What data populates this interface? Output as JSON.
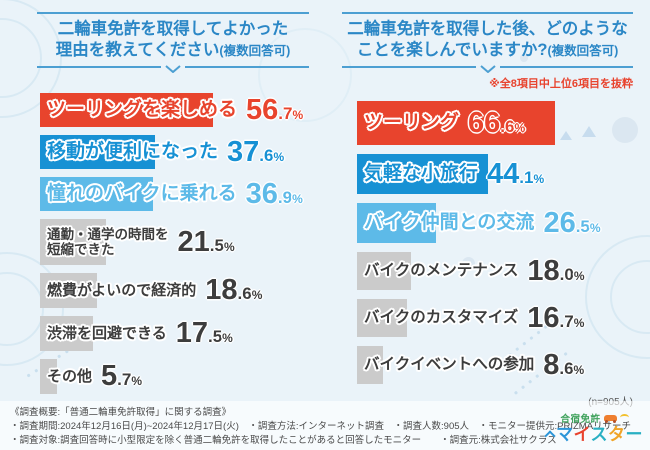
{
  "colors": {
    "red": "#e8442d",
    "blue": "#1791d4",
    "lightblue": "#5dbae8",
    "gray": "#cbcbcb",
    "dark": "#3d3d3d",
    "title_blue": "#2b87c6",
    "line_blue": "#4c9fd2",
    "note_red": "#e8432e",
    "bg": "#eaf3f9"
  },
  "left_chart": {
    "title1": "二輪車免許を取得してよかった",
    "title2": "理由を教えてください",
    "title_paren": "(複数回答可)",
    "items": [
      {
        "label": "ツーリングを楽しめる",
        "value": 56.7,
        "int": "56",
        "dec": ".7",
        "sym": "%",
        "color": "red"
      },
      {
        "label": "移動が便利になった",
        "value": 37.6,
        "int": "37",
        "dec": ".6",
        "sym": "%",
        "color": "blue"
      },
      {
        "label": "憧れのバイクに乗れる",
        "value": 36.9,
        "int": "36",
        "dec": ".9",
        "sym": "%",
        "color": "lightblue"
      },
      {
        "label": "通勤・通学の時間を",
        "label2": "短縮できた",
        "value": 21.5,
        "int": "21",
        "dec": ".5",
        "sym": "%",
        "color": "gray"
      },
      {
        "label": "燃費がよいので経済的",
        "value": 18.6,
        "int": "18",
        "dec": ".6",
        "sym": "%",
        "color": "gray"
      },
      {
        "label": "渋滞を回避できる",
        "value": 17.5,
        "int": "17",
        "dec": ".5",
        "sym": "%",
        "color": "gray"
      },
      {
        "label": "その他",
        "value": 5.7,
        "int": "5",
        "dec": ".7",
        "sym": "%",
        "color": "gray"
      }
    ]
  },
  "right_chart": {
    "title1": "二輪車免許を取得した後、どのような",
    "title2": "ことを楽しんでいますか?",
    "title_paren": "(複数回答可)",
    "note": "※全8項目中上位6項目を抜粋",
    "sample": "(n=905人)",
    "items": [
      {
        "label": "ツーリング",
        "value": 66.6,
        "int": "66",
        "dec": ".6",
        "sym": "%",
        "color": "red"
      },
      {
        "label": "気軽な小旅行",
        "value": 44.1,
        "int": "44",
        "dec": ".1",
        "sym": "%",
        "color": "blue"
      },
      {
        "label": "バイク仲間との交流",
        "value": 26.5,
        "int": "26",
        "dec": ".5",
        "sym": "%",
        "color": "lightblue"
      },
      {
        "label": "バイクのメンテナンス",
        "value": 18.0,
        "int": "18",
        "dec": ".0",
        "sym": "%",
        "color": "gray"
      },
      {
        "label": "バイクのカスタマイズ",
        "value": 16.7,
        "int": "16",
        "dec": ".7",
        "sym": "%",
        "color": "gray"
      },
      {
        "label": "バイクイベントへの参加",
        "value": 8.6,
        "int": "8",
        "dec": ".6",
        "sym": "%",
        "color": "gray"
      }
    ]
  },
  "footer": {
    "line1": "《調査概要:「普通二輪車免許取得」に関する調査》",
    "line2": "・調査期間:2024年12月16日(月)~2024年12月17日(火)　・調査方法:インターネット調査　・調査人数:905人　・モニター提供元:PRIZMAリサーチ",
    "line3": "・調査対象:調査回答時に小型限定を除く普通二輪免許を取得したことがあると回答したモニター　　・調査元:株式会社サクラス"
  },
  "logo": {
    "top": "合宿免許",
    "chars": [
      {
        "ch": "マ",
        "color": "#2b95d8"
      },
      {
        "ch": "イ",
        "color": "#e8432e"
      },
      {
        "ch": "ス",
        "color": "#29b0c3"
      },
      {
        "ch": "タ",
        "color": "#f0a428"
      },
      {
        "ch": "ー",
        "color": "#29b0c3"
      }
    ]
  },
  "chart_data": [
    {
      "type": "bar",
      "orientation": "horizontal",
      "title": "二輪車免許を取得してよかった理由を教えてください(複数回答可)",
      "categories": [
        "ツーリングを楽しめる",
        "移動が便利になった",
        "憧れのバイクに乗れる",
        "通勤・通学の時間を短縮できた",
        "燃費がよいので経済的",
        "渋滞を回避できる",
        "その他"
      ],
      "values": [
        56.7,
        37.6,
        36.9,
        21.5,
        18.6,
        17.5,
        5.7
      ],
      "unit": "%",
      "xlim": [
        0,
        100
      ],
      "grid": false,
      "sample_size": 905
    },
    {
      "type": "bar",
      "orientation": "horizontal",
      "title": "二輪車免許を取得した後、どのようなことを楽しんでいますか?(複数回答可)",
      "subtitle": "※全8項目中上位6項目を抜粋",
      "categories": [
        "ツーリング",
        "気軽な小旅行",
        "バイク仲間との交流",
        "バイクのメンテナンス",
        "バイクのカスタマイズ",
        "バイクイベントへの参加"
      ],
      "values": [
        66.6,
        44.1,
        26.5,
        18.0,
        16.7,
        8.6
      ],
      "unit": "%",
      "xlim": [
        0,
        100
      ],
      "grid": false,
      "sample_size": 905
    }
  ]
}
